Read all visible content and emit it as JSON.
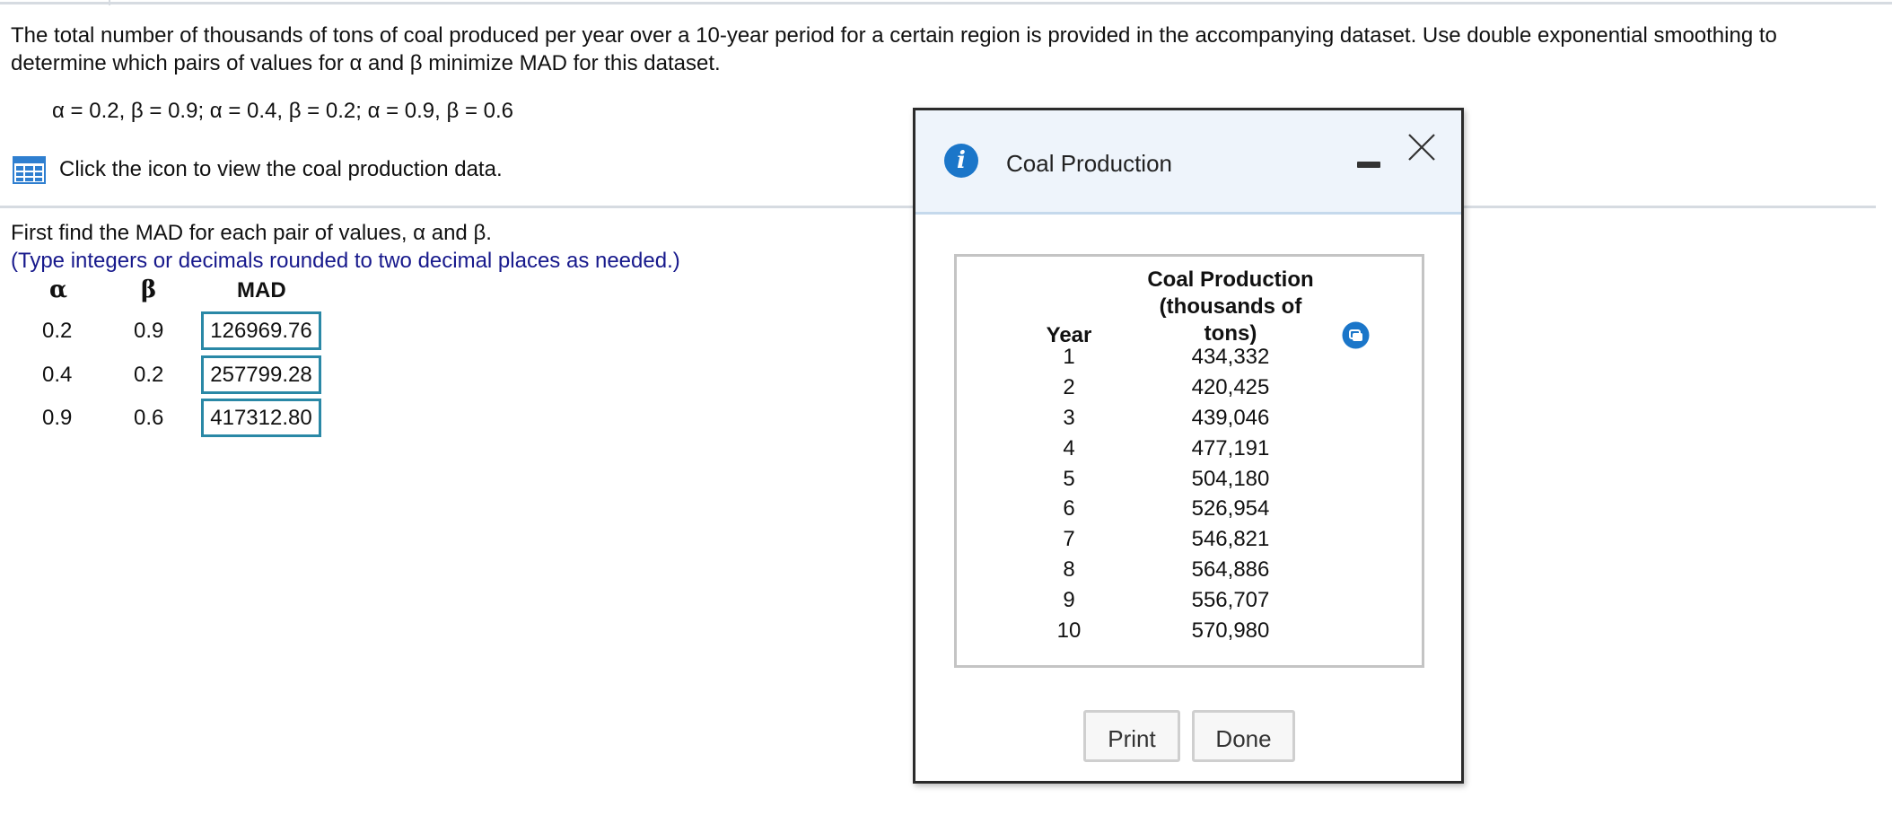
{
  "question": {
    "text": "The total number of thousands of tons of coal produced per year over a 10-year period for a certain region is provided in the accompanying dataset. Use double exponential smoothing to determine which pairs of values for α and β minimize MAD for this dataset.",
    "options": "α = 0.2, β = 0.9; α = 0.4, β = 0.2; α = 0.9, β = 0.6",
    "data_link_label": "Click the icon to view the coal production data."
  },
  "answer": {
    "instruction": "First find the MAD for each pair of values, α and β.",
    "hint": "(Type integers or decimals rounded to two decimal places as needed.)",
    "headers": {
      "alpha": "α",
      "beta": "β",
      "mad": "MAD"
    },
    "rows": [
      {
        "alpha": "0.2",
        "beta": "0.9",
        "mad": "126969.76"
      },
      {
        "alpha": "0.4",
        "beta": "0.2",
        "mad": "257799.28"
      },
      {
        "alpha": "0.9",
        "beta": "0.6",
        "mad": "417312.80"
      }
    ]
  },
  "dialog": {
    "title": "Coal Production",
    "table": {
      "year_header": "Year",
      "production_header": [
        "Coal Production",
        "(thousands of",
        "tons)"
      ],
      "rows": [
        {
          "year": "1",
          "value": "434,332"
        },
        {
          "year": "2",
          "value": "420,425"
        },
        {
          "year": "3",
          "value": "439,046"
        },
        {
          "year": "4",
          "value": "477,191"
        },
        {
          "year": "5",
          "value": "504,180"
        },
        {
          "year": "6",
          "value": "526,954"
        },
        {
          "year": "7",
          "value": "546,821"
        },
        {
          "year": "8",
          "value": "564,886"
        },
        {
          "year": "9",
          "value": "556,707"
        },
        {
          "year": "10",
          "value": "570,980"
        }
      ]
    },
    "buttons": {
      "print": "Print",
      "done": "Done"
    }
  },
  "colors": {
    "accent": "#1b76c9",
    "input_border": "#2a88a6",
    "hint_text": "#17198c",
    "dialog_header_bg": "#eef4fb"
  },
  "icons": {
    "data_table": "table-icon",
    "dialog_info": "info-icon",
    "dialog_minimize": "minimize-icon",
    "dialog_close": "close-icon",
    "copy": "copy-icon"
  }
}
